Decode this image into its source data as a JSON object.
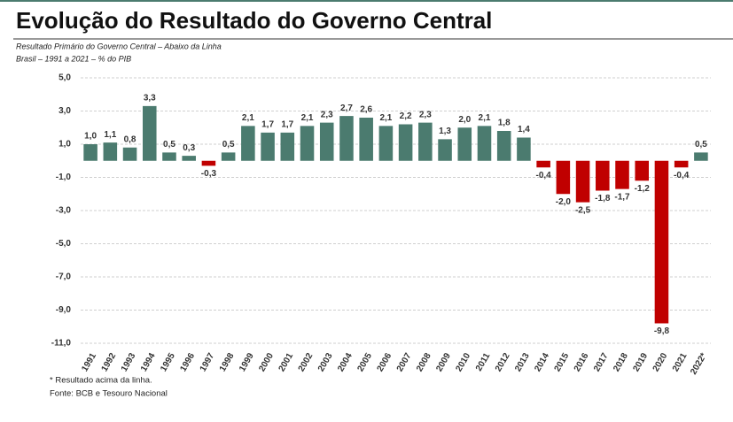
{
  "chart_data": {
    "type": "bar",
    "title": "Evolução do Resultado do Governo Central",
    "subtitle": [
      "Resultado Primário do Governo Central – Abaixo da Linha",
      "Brasil – 1991 a 2021 – % do PIB"
    ],
    "categories": [
      "1991",
      "1992",
      "1993",
      "1994",
      "1995",
      "1996",
      "1997",
      "1998",
      "1999",
      "2000",
      "2001",
      "2002",
      "2003",
      "2004",
      "2005",
      "2006",
      "2007",
      "2008",
      "2009",
      "2010",
      "2011",
      "2012",
      "2013",
      "2014",
      "2015",
      "2016",
      "2017",
      "2018",
      "2019",
      "2020",
      "2021",
      "2022*"
    ],
    "values": [
      1.0,
      1.1,
      0.8,
      3.3,
      0.5,
      0.3,
      -0.3,
      0.5,
      2.1,
      1.7,
      1.7,
      2.1,
      2.3,
      2.7,
      2.6,
      2.1,
      2.2,
      2.3,
      1.3,
      2.0,
      2.1,
      1.8,
      1.4,
      -0.4,
      -2.0,
      -2.5,
      -1.8,
      -1.7,
      -1.2,
      -9.8,
      -0.4,
      0.5
    ],
    "value_labels": [
      "1,0",
      "1,1",
      "0,8",
      "3,3",
      "0,5",
      "0,3",
      "-0,3",
      "0,5",
      "2,1",
      "1,7",
      "1,7",
      "2,1",
      "2,3",
      "2,7",
      "2,6",
      "2,1",
      "2,2",
      "2,3",
      "1,3",
      "2,0",
      "2,1",
      "1,8",
      "1,4",
      "-0,4",
      "-2,0",
      "-2,5",
      "-1,8",
      "-1,7",
      "-1,2",
      "-9,8",
      "-0,4",
      "0,5"
    ],
    "color": "#4b7b6f",
    "negative_color": "#c00000",
    "ylim": [
      -11,
      5
    ],
    "yticks": [
      {
        "value": 5,
        "label": "5,0"
      },
      {
        "value": 3,
        "label": "3,0"
      },
      {
        "value": 1,
        "label": "1,0"
      },
      {
        "value": -1,
        "label": "-1,0"
      },
      {
        "value": -3,
        "label": "-3,0"
      },
      {
        "value": -5,
        "label": "-5,0"
      },
      {
        "value": -7,
        "label": "-7,0"
      },
      {
        "value": -9,
        "label": "-9,0"
      },
      {
        "value": -11,
        "label": "-11,0"
      }
    ],
    "grid": true,
    "notes": [
      "* Resultado acima da linha.",
      "Fonte: BCB e Tesouro Nacional"
    ]
  }
}
